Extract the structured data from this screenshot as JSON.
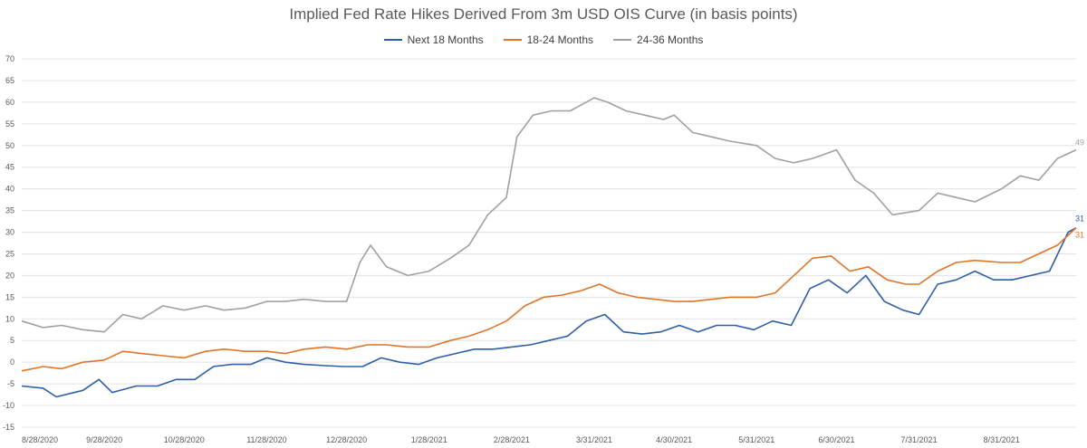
{
  "chart_data": {
    "type": "line",
    "title": "Implied Fed Rate Hikes Derived From 3m USD OIS Curve (in basis points)",
    "xlabel": "",
    "ylabel": "",
    "ylim": [
      -15,
      70
    ],
    "yticks": [
      -15,
      -10,
      -5,
      0,
      5,
      10,
      15,
      20,
      25,
      30,
      35,
      40,
      45,
      50,
      55,
      60,
      65,
      70
    ],
    "xlim": [
      "2020-08-28",
      "2021-09-28"
    ],
    "xtick_labels": [
      "8/28/2020",
      "9/28/2020",
      "10/28/2020",
      "11/28/2020",
      "12/28/2020",
      "1/28/2021",
      "2/28/2021",
      "3/31/2021",
      "4/30/2021",
      "5/31/2021",
      "6/30/2021",
      "7/31/2021",
      "8/31/2021"
    ],
    "xtick_dates": [
      "2020-08-28",
      "2020-09-28",
      "2020-10-28",
      "2020-11-28",
      "2020-12-28",
      "2021-01-28",
      "2021-02-28",
      "2021-03-31",
      "2021-04-30",
      "2021-05-31",
      "2021-06-30",
      "2021-07-31",
      "2021-08-31"
    ],
    "grid": "horizontal",
    "legend_position": "top",
    "series": [
      {
        "name": "Next 18 Months",
        "color": "#2e5ea8",
        "end_label": "31",
        "points": [
          [
            "2020-08-28",
            -5.5
          ],
          [
            "2020-09-05",
            -6
          ],
          [
            "2020-09-10",
            -8
          ],
          [
            "2020-09-20",
            -6.5
          ],
          [
            "2020-09-26",
            -4
          ],
          [
            "2020-10-01",
            -7
          ],
          [
            "2020-10-10",
            -5.5
          ],
          [
            "2020-10-18",
            -5.5
          ],
          [
            "2020-10-25",
            -4
          ],
          [
            "2020-11-01",
            -4
          ],
          [
            "2020-11-08",
            -1
          ],
          [
            "2020-11-15",
            -0.5
          ],
          [
            "2020-11-22",
            -0.5
          ],
          [
            "2020-11-28",
            1
          ],
          [
            "2020-12-05",
            0
          ],
          [
            "2020-12-12",
            -0.5
          ],
          [
            "2020-12-20",
            -0.8
          ],
          [
            "2020-12-27",
            -1
          ],
          [
            "2021-01-03",
            -1
          ],
          [
            "2021-01-10",
            1
          ],
          [
            "2021-01-17",
            0
          ],
          [
            "2021-01-24",
            -0.5
          ],
          [
            "2021-01-31",
            1
          ],
          [
            "2021-02-07",
            2
          ],
          [
            "2021-02-14",
            3
          ],
          [
            "2021-02-21",
            3
          ],
          [
            "2021-02-28",
            3.5
          ],
          [
            "2021-03-07",
            4
          ],
          [
            "2021-03-14",
            5
          ],
          [
            "2021-03-21",
            6
          ],
          [
            "2021-03-28",
            9.5
          ],
          [
            "2021-04-04",
            11
          ],
          [
            "2021-04-11",
            7
          ],
          [
            "2021-04-18",
            6.5
          ],
          [
            "2021-04-25",
            7
          ],
          [
            "2021-05-02",
            8.5
          ],
          [
            "2021-05-09",
            7
          ],
          [
            "2021-05-16",
            8.5
          ],
          [
            "2021-05-23",
            8.5
          ],
          [
            "2021-05-30",
            7.5
          ],
          [
            "2021-06-06",
            9.5
          ],
          [
            "2021-06-13",
            8.5
          ],
          [
            "2021-06-20",
            17
          ],
          [
            "2021-06-27",
            19
          ],
          [
            "2021-07-04",
            16
          ],
          [
            "2021-07-11",
            20
          ],
          [
            "2021-07-18",
            14
          ],
          [
            "2021-07-25",
            12
          ],
          [
            "2021-07-31",
            11
          ],
          [
            "2021-08-07",
            18
          ],
          [
            "2021-08-14",
            19
          ],
          [
            "2021-08-21",
            21
          ],
          [
            "2021-08-28",
            19
          ],
          [
            "2021-09-04",
            19
          ],
          [
            "2021-09-11",
            20
          ],
          [
            "2021-09-18",
            21
          ],
          [
            "2021-09-25",
            30
          ],
          [
            "2021-09-28",
            31
          ]
        ]
      },
      {
        "name": "18-24 Months",
        "color": "#e07427",
        "end_label": "31",
        "points": [
          [
            "2020-08-28",
            -2
          ],
          [
            "2020-09-05",
            -1
          ],
          [
            "2020-09-12",
            -1.5
          ],
          [
            "2020-09-20",
            0
          ],
          [
            "2020-09-28",
            0.5
          ],
          [
            "2020-10-05",
            2.5
          ],
          [
            "2020-10-12",
            2
          ],
          [
            "2020-10-20",
            1.5
          ],
          [
            "2020-10-28",
            1
          ],
          [
            "2020-11-05",
            2.5
          ],
          [
            "2020-11-12",
            3
          ],
          [
            "2020-11-20",
            2.5
          ],
          [
            "2020-11-28",
            2.5
          ],
          [
            "2020-12-05",
            2
          ],
          [
            "2020-12-12",
            3
          ],
          [
            "2020-12-20",
            3.5
          ],
          [
            "2020-12-28",
            3
          ],
          [
            "2021-01-05",
            4
          ],
          [
            "2021-01-12",
            4
          ],
          [
            "2021-01-20",
            3.5
          ],
          [
            "2021-01-28",
            3.5
          ],
          [
            "2021-02-05",
            5
          ],
          [
            "2021-02-12",
            6
          ],
          [
            "2021-02-19",
            7.5
          ],
          [
            "2021-02-26",
            9.5
          ],
          [
            "2021-03-05",
            13
          ],
          [
            "2021-03-12",
            15
          ],
          [
            "2021-03-19",
            15.5
          ],
          [
            "2021-03-26",
            16.5
          ],
          [
            "2021-04-02",
            18
          ],
          [
            "2021-04-09",
            16
          ],
          [
            "2021-04-16",
            15
          ],
          [
            "2021-04-23",
            14.5
          ],
          [
            "2021-04-30",
            14
          ],
          [
            "2021-05-07",
            14
          ],
          [
            "2021-05-14",
            14.5
          ],
          [
            "2021-05-21",
            15
          ],
          [
            "2021-05-31",
            15
          ],
          [
            "2021-06-07",
            16
          ],
          [
            "2021-06-14",
            20
          ],
          [
            "2021-06-21",
            24
          ],
          [
            "2021-06-28",
            24.5
          ],
          [
            "2021-07-05",
            21
          ],
          [
            "2021-07-12",
            22
          ],
          [
            "2021-07-19",
            19
          ],
          [
            "2021-07-26",
            18
          ],
          [
            "2021-07-31",
            18
          ],
          [
            "2021-08-07",
            21
          ],
          [
            "2021-08-14",
            23
          ],
          [
            "2021-08-21",
            23.5
          ],
          [
            "2021-08-31",
            23
          ],
          [
            "2021-09-07",
            23
          ],
          [
            "2021-09-14",
            25
          ],
          [
            "2021-09-21",
            27
          ],
          [
            "2021-09-28",
            31
          ]
        ]
      },
      {
        "name": "24-36 Months",
        "color": "#a0a0a0",
        "end_label": "49",
        "points": [
          [
            "2020-08-28",
            9.5
          ],
          [
            "2020-09-05",
            8
          ],
          [
            "2020-09-12",
            8.5
          ],
          [
            "2020-09-20",
            7.5
          ],
          [
            "2020-09-28",
            7
          ],
          [
            "2020-10-05",
            11
          ],
          [
            "2020-10-12",
            10
          ],
          [
            "2020-10-20",
            13
          ],
          [
            "2020-10-28",
            12
          ],
          [
            "2020-11-05",
            13
          ],
          [
            "2020-11-12",
            12
          ],
          [
            "2020-11-20",
            12.5
          ],
          [
            "2020-11-28",
            14
          ],
          [
            "2020-12-05",
            14
          ],
          [
            "2020-12-12",
            14.5
          ],
          [
            "2020-12-20",
            14
          ],
          [
            "2020-12-28",
            14
          ],
          [
            "2021-01-02",
            23
          ],
          [
            "2021-01-06",
            27
          ],
          [
            "2021-01-12",
            22
          ],
          [
            "2021-01-20",
            20
          ],
          [
            "2021-01-28",
            21
          ],
          [
            "2021-02-05",
            24
          ],
          [
            "2021-02-12",
            27
          ],
          [
            "2021-02-19",
            34
          ],
          [
            "2021-02-26",
            38
          ],
          [
            "2021-03-02",
            52
          ],
          [
            "2021-03-08",
            57
          ],
          [
            "2021-03-15",
            58
          ],
          [
            "2021-03-22",
            58
          ],
          [
            "2021-03-31",
            61
          ],
          [
            "2021-04-05",
            60
          ],
          [
            "2021-04-12",
            58
          ],
          [
            "2021-04-19",
            57
          ],
          [
            "2021-04-26",
            56
          ],
          [
            "2021-04-30",
            57
          ],
          [
            "2021-05-07",
            53
          ],
          [
            "2021-05-14",
            52
          ],
          [
            "2021-05-21",
            51
          ],
          [
            "2021-05-31",
            50
          ],
          [
            "2021-06-07",
            47
          ],
          [
            "2021-06-14",
            46
          ],
          [
            "2021-06-21",
            47
          ],
          [
            "2021-06-30",
            49
          ],
          [
            "2021-07-07",
            42
          ],
          [
            "2021-07-14",
            39
          ],
          [
            "2021-07-21",
            34
          ],
          [
            "2021-07-31",
            35
          ],
          [
            "2021-08-07",
            39
          ],
          [
            "2021-08-14",
            38
          ],
          [
            "2021-08-21",
            37
          ],
          [
            "2021-08-31",
            40
          ],
          [
            "2021-09-07",
            43
          ],
          [
            "2021-09-14",
            42
          ],
          [
            "2021-09-21",
            47
          ],
          [
            "2021-09-28",
            49
          ]
        ]
      }
    ]
  }
}
